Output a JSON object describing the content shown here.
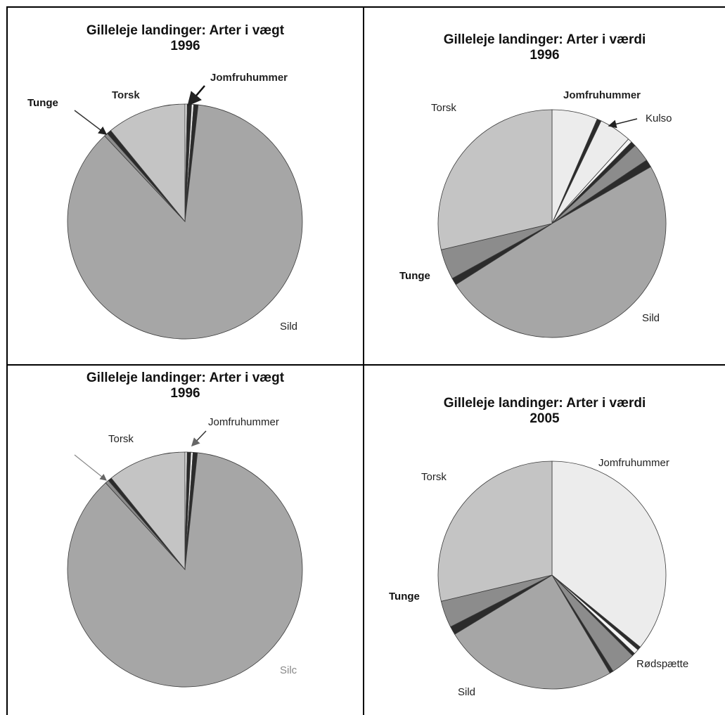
{
  "colors": {
    "sild": "#a6a6a6",
    "torsk": "#c4c4c4",
    "jomfruhummer": "#ececec",
    "small_dark": "#2b2b2b",
    "small_light": "#f4f4f4",
    "small_mid": "#8c8c8c",
    "outline": "#3a3a3a"
  },
  "charts": [
    {
      "title_line1": "Gilleleje landinger: Arter i vægt",
      "title_line2": "1996",
      "labels": {
        "jomfruhummer": "Jomfruhummer",
        "torsk": "Torsk",
        "tunge": "Tunge",
        "sild": "Sild"
      }
    },
    {
      "title_line1": "Gilleleje landinger: Arter i værdi",
      "title_line2": "1996",
      "labels": {
        "jomfruhummer": "Jomfruhummer",
        "kulso": "Kulso",
        "torsk": "Torsk",
        "tunge": "Tunge",
        "sild": "Sild"
      }
    },
    {
      "title_line1": "Gilleleje landinger: Arter i vægt",
      "title_line2": "1996",
      "labels": {
        "jomfruhummer": "Jomfruhummer",
        "torsk": "Torsk",
        "sild": "Silc"
      }
    },
    {
      "title_line1": "Gilleleje landinger: Arter i værdi",
      "title_line2": "2005",
      "labels": {
        "jomfruhummer": "Jomfruhummer",
        "torsk": "Torsk",
        "tunge": "Tunge",
        "sild": "Sild",
        "rodspaette": "Rødspætte"
      }
    }
  ],
  "chart_data": [
    {
      "type": "pie",
      "title": "Gilleleje landinger: Arter i vægt 1996",
      "slices": [
        {
          "name": "Jomfruhummer",
          "value": 0.3,
          "color": "small_light"
        },
        {
          "name": "",
          "value": 0.6,
          "color": "small_dark"
        },
        {
          "name": "",
          "value": 0.3,
          "color": "small_light"
        },
        {
          "name": "",
          "value": 0.6,
          "color": "small_dark"
        },
        {
          "name": "Sild",
          "value": 86.2,
          "color": "sild"
        },
        {
          "name": "Tunge",
          "value": 0.5,
          "color": "small_mid"
        },
        {
          "name": "",
          "value": 0.6,
          "color": "small_dark"
        },
        {
          "name": "Torsk",
          "value": 10.9,
          "color": "torsk"
        }
      ]
    },
    {
      "type": "pie",
      "title": "Gilleleje landinger: Arter i værdi 1996",
      "slices": [
        {
          "name": "Jomfruhummer",
          "value": 6.5,
          "color": "jomfruhummer"
        },
        {
          "name": "",
          "value": 0.6,
          "color": "small_dark"
        },
        {
          "name": "Kulso",
          "value": 4.6,
          "color": "jomfruhummer"
        },
        {
          "name": "",
          "value": 0.6,
          "color": "small_light"
        },
        {
          "name": "",
          "value": 0.7,
          "color": "small_dark"
        },
        {
          "name": "",
          "value": 2.6,
          "color": "small_mid"
        },
        {
          "name": "",
          "value": 1.1,
          "color": "small_dark"
        },
        {
          "name": "Sild",
          "value": 49.3,
          "color": "sild"
        },
        {
          "name": "",
          "value": 1.0,
          "color": "small_dark"
        },
        {
          "name": "Tunge",
          "value": 4.3,
          "color": "small_mid"
        },
        {
          "name": "Torsk",
          "value": 28.7,
          "color": "torsk"
        }
      ]
    },
    {
      "type": "pie",
      "title": "Gilleleje landinger: Arter i vægt 1996",
      "slices": [
        {
          "name": "Jomfruhummer",
          "value": 0.3,
          "color": "small_light"
        },
        {
          "name": "",
          "value": 0.5,
          "color": "small_dark"
        },
        {
          "name": "",
          "value": 0.3,
          "color": "small_light"
        },
        {
          "name": "",
          "value": 0.6,
          "color": "small_dark"
        },
        {
          "name": "Sild",
          "value": 86.5,
          "color": "sild"
        },
        {
          "name": "",
          "value": 0.5,
          "color": "small_mid"
        },
        {
          "name": "",
          "value": 0.5,
          "color": "small_dark"
        },
        {
          "name": "Torsk",
          "value": 10.8,
          "color": "torsk"
        }
      ]
    },
    {
      "type": "pie",
      "title": "Gilleleje landinger: Arter i værdi 2005",
      "slices": [
        {
          "name": "Jomfruhummer",
          "value": 35.9,
          "color": "jomfruhummer"
        },
        {
          "name": "",
          "value": 0.5,
          "color": "small_dark"
        },
        {
          "name": "",
          "value": 0.7,
          "color": "small_light"
        },
        {
          "name": "",
          "value": 0.4,
          "color": "small_dark"
        },
        {
          "name": "Rødspætte",
          "value": 3.5,
          "color": "small_mid"
        },
        {
          "name": "",
          "value": 0.5,
          "color": "small_dark"
        },
        {
          "name": "Sild",
          "value": 24.8,
          "color": "sild"
        },
        {
          "name": "",
          "value": 1.2,
          "color": "small_dark"
        },
        {
          "name": "Tunge",
          "value": 3.8,
          "color": "small_mid"
        },
        {
          "name": "Torsk",
          "value": 28.7,
          "color": "torsk"
        }
      ]
    }
  ]
}
